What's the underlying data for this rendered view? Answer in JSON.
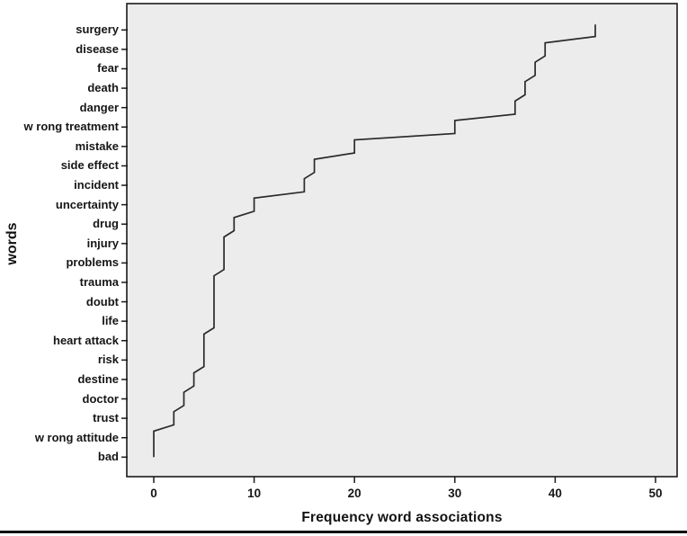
{
  "chart_data": {
    "type": "line",
    "interpolation": "step",
    "orientation": "categories-on-y-axis",
    "title": "",
    "xlabel": "Frequency word associations",
    "ylabel": "words",
    "x_ticks": [
      0,
      10,
      20,
      30,
      40,
      50
    ],
    "xlim": [
      0,
      50
    ],
    "grid": false,
    "legend": "none",
    "categories": [
      "surgery",
      "disease",
      "fear",
      "death",
      "danger",
      "w rong treatment",
      "mistake",
      "side effect",
      "incident",
      "uncertainty",
      "drug",
      "injury",
      "problems",
      "trauma",
      "doubt",
      "life",
      "heart attack",
      "risk",
      "destine",
      "doctor",
      "trust",
      "w rong attitude",
      "bad"
    ],
    "values": [
      44,
      39,
      38,
      37,
      36,
      30,
      20,
      16,
      15,
      10,
      8,
      7,
      7,
      6,
      6,
      6,
      5,
      5,
      4,
      3,
      2,
      0,
      0
    ],
    "colors": {
      "plot_background": "#ececec",
      "figure_background": "#ffffff",
      "line": "#2a2a2a",
      "frame": "#1a1a1a",
      "text": "#161616"
    }
  }
}
